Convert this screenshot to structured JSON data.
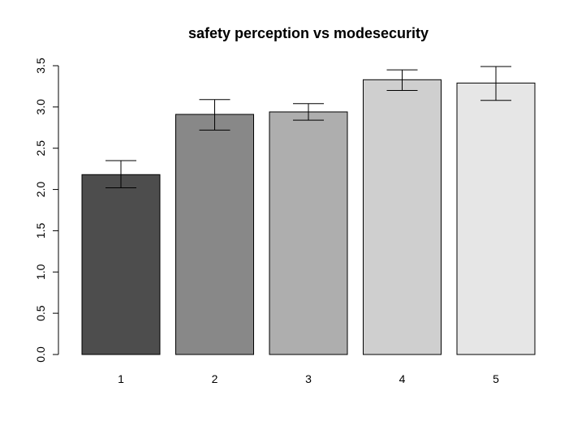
{
  "chart_data": {
    "type": "bar",
    "title": "safety perception vs modesecurity",
    "xlabel": "",
    "ylabel": "",
    "categories": [
      "1",
      "2",
      "3",
      "4",
      "5"
    ],
    "values": [
      2.18,
      2.91,
      2.94,
      3.33,
      3.29
    ],
    "error_low": [
      2.02,
      2.72,
      2.84,
      3.2,
      3.08
    ],
    "error_high": [
      2.35,
      3.09,
      3.04,
      3.45,
      3.49
    ],
    "bar_colors": [
      "#4d4d4d",
      "#888888",
      "#aeaeae",
      "#cfcfcf",
      "#e6e6e6"
    ],
    "ylim": [
      0,
      3.5
    ],
    "yticks": [
      "0.0",
      "0.5",
      "1.0",
      "1.5",
      "2.0",
      "2.5",
      "3.0",
      "3.5"
    ],
    "grid": false,
    "legend": "none"
  }
}
